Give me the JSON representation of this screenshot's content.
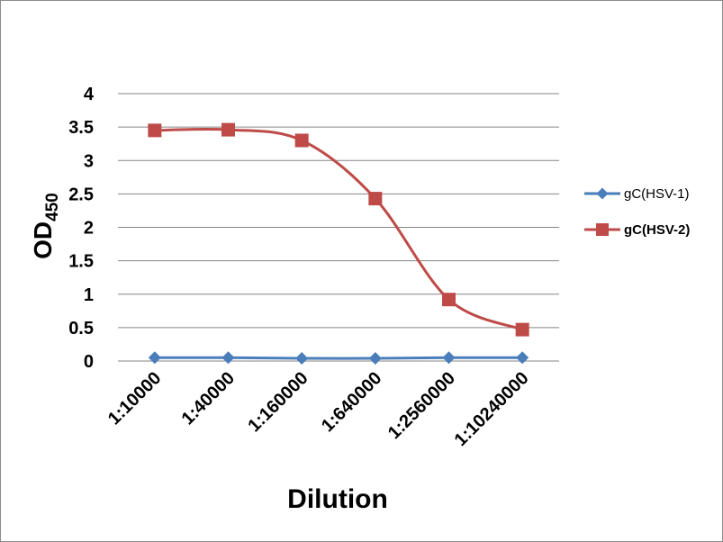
{
  "chart_data": {
    "type": "line",
    "categories": [
      "1:10000",
      "1:40000",
      "1:160000",
      "1:640000",
      "1:2560000",
      "1:10240000"
    ],
    "series": [
      {
        "name": "gC(HSV-1)",
        "color": "#4a7ebb",
        "marker": "diamond",
        "bold_label": false,
        "values": [
          0.05,
          0.05,
          0.04,
          0.04,
          0.05,
          0.05
        ]
      },
      {
        "name": "gC(HSV-2)",
        "color": "#be4b48",
        "marker": "square",
        "bold_label": true,
        "values": [
          3.45,
          3.46,
          3.3,
          2.43,
          0.92,
          0.47
        ]
      }
    ],
    "xlabel": "Dilution",
    "ylabel": "OD",
    "ylabel_subscript": "450",
    "ylim": [
      0,
      4
    ],
    "yticks": [
      0,
      0.5,
      1,
      1.5,
      2,
      2.5,
      3,
      3.5,
      4
    ],
    "grid": true,
    "legend": "right"
  }
}
